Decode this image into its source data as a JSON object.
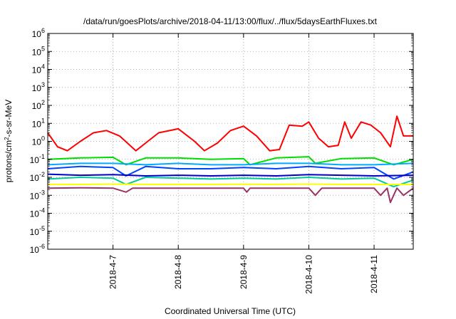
{
  "chart_data": {
    "type": "line",
    "title": "/data/run/goesPlots/archive/2018-04-11/13:00/flux/../flux/5daysEarthFluxes.txt",
    "xlabel": "Coordinated Universal Time (UTC)",
    "ylabel_main": "protons/cm",
    "ylabel_sup": "2",
    "ylabel_tail": "-s-sr-MeV",
    "yscale": "log",
    "ylim_exp": [
      -6,
      6
    ],
    "y_ticks": [
      {
        "base": "10",
        "exp": "-6",
        "e": -6
      },
      {
        "base": "10",
        "exp": "-5",
        "e": -5
      },
      {
        "base": "10",
        "exp": "-4",
        "e": -4
      },
      {
        "base": "10",
        "exp": "-3",
        "e": -3
      },
      {
        "base": "10",
        "exp": "-2",
        "e": -2
      },
      {
        "base": "10",
        "exp": "-1",
        "e": -1
      },
      {
        "base": "10",
        "exp": "0",
        "e": 0
      },
      {
        "base": "10",
        "exp": "1",
        "e": 1
      },
      {
        "base": "10",
        "exp": "2",
        "e": 2
      },
      {
        "base": "10",
        "exp": "3",
        "e": 3
      },
      {
        "base": "10",
        "exp": "4",
        "e": 4
      },
      {
        "base": "10",
        "exp": "5",
        "e": 5
      },
      {
        "base": "10",
        "exp": "6",
        "e": 6
      }
    ],
    "xlim_days": [
      6.0,
      11.6
    ],
    "x_ticks": [
      {
        "label": "2018-4-7",
        "day": 7
      },
      {
        "label": "2018-4-8",
        "day": 8
      },
      {
        "label": "2018-4-9",
        "day": 9
      },
      {
        "label": "2018-4-10",
        "day": 10
      },
      {
        "label": "2018-4-11",
        "day": 11
      }
    ],
    "grid": true,
    "series": [
      {
        "color": "#ff0000",
        "x": [
          6.0,
          6.15,
          6.3,
          6.5,
          6.7,
          6.9,
          7.1,
          7.35,
          7.5,
          7.7,
          8.0,
          8.25,
          8.4,
          8.6,
          8.8,
          9.0,
          9.2,
          9.4,
          9.55,
          9.7,
          9.9,
          10.0,
          10.15,
          10.3,
          10.45,
          10.55,
          10.65,
          10.8,
          10.95,
          11.1,
          11.25,
          11.35,
          11.45,
          11.6
        ],
        "y": [
          3,
          0.5,
          0.3,
          1,
          3,
          4,
          2,
          0.3,
          0.8,
          3,
          5,
          1,
          0.3,
          0.8,
          4,
          7,
          2,
          0.3,
          0.35,
          8,
          7,
          12,
          1.5,
          0.5,
          0.6,
          12,
          1.5,
          12,
          8,
          3,
          0.5,
          25,
          2,
          2
        ]
      },
      {
        "color": "#00dd00",
        "x": [
          6.0,
          6.5,
          7.0,
          7.2,
          7.5,
          8.0,
          8.5,
          9.0,
          9.1,
          9.5,
          10.0,
          10.1,
          10.5,
          11.0,
          11.3,
          11.6
        ],
        "y": [
          0.1,
          0.12,
          0.13,
          0.05,
          0.12,
          0.12,
          0.1,
          0.11,
          0.05,
          0.12,
          0.14,
          0.06,
          0.11,
          0.12,
          0.05,
          0.1
        ]
      },
      {
        "color": "#00aaff",
        "x": [
          6.0,
          6.5,
          7.0,
          7.5,
          8.0,
          8.5,
          9.0,
          9.5,
          10.0,
          10.5,
          11.0,
          11.6
        ],
        "y": [
          0.05,
          0.06,
          0.06,
          0.05,
          0.06,
          0.05,
          0.05,
          0.06,
          0.06,
          0.05,
          0.05,
          0.06
        ]
      },
      {
        "color": "#0044ff",
        "x": [
          6.0,
          6.5,
          7.0,
          7.2,
          7.5,
          8.0,
          8.5,
          9.0,
          9.5,
          10.0,
          10.5,
          11.0,
          11.3,
          11.6
        ],
        "y": [
          0.03,
          0.04,
          0.035,
          0.012,
          0.04,
          0.03,
          0.03,
          0.035,
          0.03,
          0.04,
          0.03,
          0.035,
          0.008,
          0.02
        ]
      },
      {
        "color": "#00cc99",
        "x": [
          6.0,
          6.5,
          7.0,
          7.2,
          7.5,
          8.0,
          8.5,
          9.0,
          9.5,
          10.0,
          10.5,
          11.0,
          11.3,
          11.6
        ],
        "y": [
          0.008,
          0.01,
          0.009,
          0.004,
          0.01,
          0.009,
          0.008,
          0.009,
          0.008,
          0.01,
          0.008,
          0.009,
          0.003,
          0.007
        ]
      },
      {
        "color": "#0000cc",
        "x": [
          6.0,
          6.5,
          7.0,
          7.5,
          8.0,
          8.5,
          9.0,
          9.5,
          10.0,
          10.5,
          11.0,
          11.6
        ],
        "y": [
          0.015,
          0.013,
          0.014,
          0.012,
          0.013,
          0.012,
          0.013,
          0.012,
          0.014,
          0.013,
          0.012,
          0.013
        ]
      },
      {
        "color": "#ffff00",
        "x": [
          6.0,
          6.5,
          7.0,
          7.5,
          8.0,
          8.5,
          9.0,
          9.5,
          10.0,
          10.5,
          11.0,
          11.6
        ],
        "y": [
          0.004,
          0.004,
          0.0042,
          0.004,
          0.004,
          0.004,
          0.0041,
          0.004,
          0.0042,
          0.004,
          0.004,
          0.004
        ]
      },
      {
        "color": "#993366",
        "x": [
          6.0,
          6.5,
          7.0,
          7.2,
          7.3,
          7.5,
          8.0,
          8.5,
          9.0,
          9.05,
          9.1,
          9.5,
          10.0,
          10.1,
          10.2,
          10.5,
          11.0,
          11.1,
          11.2,
          11.25,
          11.35,
          11.45,
          11.6
        ],
        "y": [
          0.0025,
          0.0026,
          0.0025,
          0.0015,
          0.0025,
          0.0025,
          0.0025,
          0.0025,
          0.0025,
          0.0015,
          0.0025,
          0.0025,
          0.0025,
          0.001,
          0.0025,
          0.0025,
          0.0025,
          0.001,
          0.0025,
          0.0004,
          0.0025,
          0.001,
          0.0025
        ]
      }
    ]
  }
}
